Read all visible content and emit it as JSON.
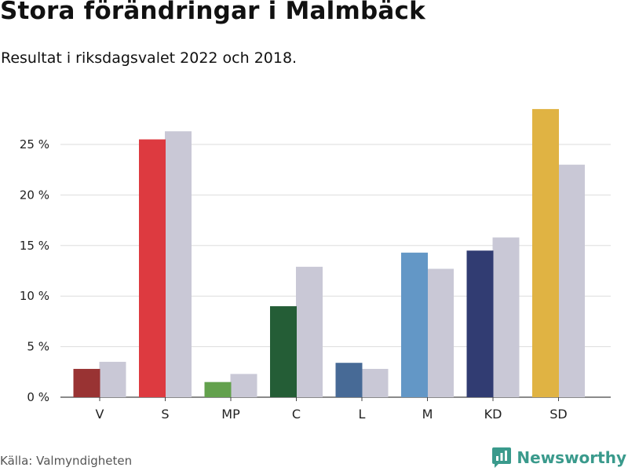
{
  "title": "Stora förändringar i Malmbäck",
  "subtitle": "Resultat i riksdagsvalet 2022 och 2018.",
  "source": "Källa: Valmyndigheten",
  "brand": {
    "name": "Newsworthy",
    "icon": "bar-chart-logo-icon",
    "color": "#3a9a8c"
  },
  "chart_data": {
    "type": "bar",
    "title": "Stora förändringar i Malmbäck",
    "subtitle": "Resultat i riksdagsvalet 2022 och 2018.",
    "xlabel": "",
    "ylabel": "",
    "ylim": [
      0,
      30
    ],
    "yticks": [
      0,
      5,
      10,
      15,
      20,
      25
    ],
    "ytick_labels": [
      "0 %",
      "5 %",
      "10 %",
      "15 %",
      "20 %",
      "25 %"
    ],
    "grid": true,
    "categories": [
      "V",
      "S",
      "MP",
      "C",
      "L",
      "M",
      "KD",
      "SD"
    ],
    "series": [
      {
        "name": "2022",
        "values": [
          2.8,
          25.5,
          1.5,
          9.0,
          3.4,
          14.3,
          14.5,
          28.5
        ],
        "colors": [
          "#993333",
          "#dd3a40",
          "#63a14d",
          "#245d36",
          "#476a96",
          "#6397c6",
          "#313c72",
          "#e0b343"
        ]
      },
      {
        "name": "2018",
        "values": [
          3.5,
          26.3,
          2.3,
          12.9,
          2.8,
          12.7,
          15.8,
          23.0
        ],
        "color": "#c9c8d6"
      }
    ]
  }
}
